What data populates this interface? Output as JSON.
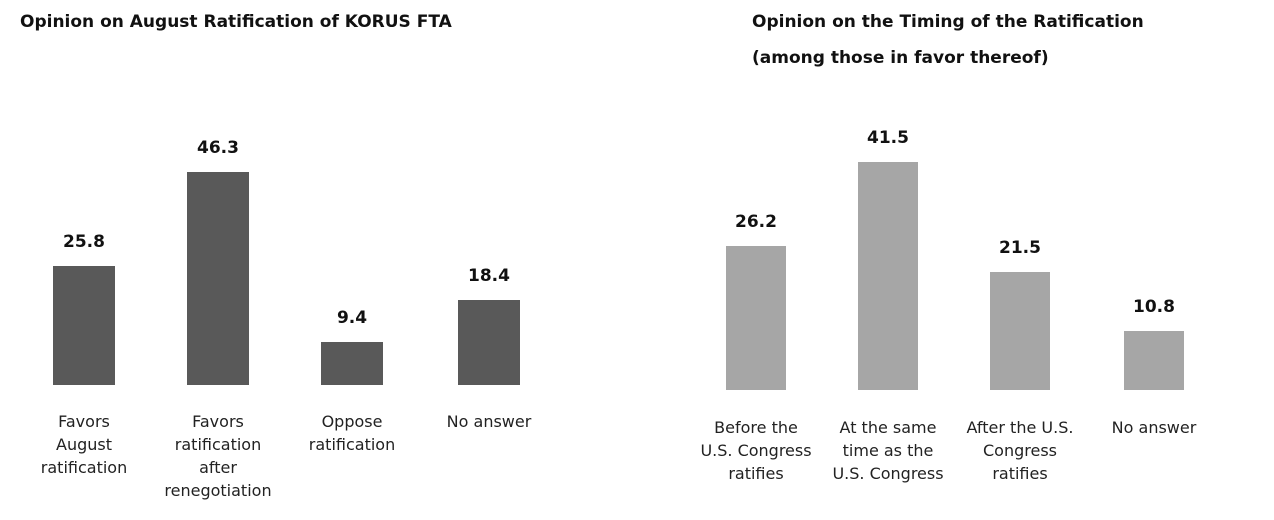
{
  "chart_data": [
    {
      "type": "bar",
      "title": "Opinion on August Ratification of KORUS FTA",
      "categories": [
        "Favors\nAugust\nratification",
        "Favors\nratification\nafter\nrenegotiation",
        "Oppose\nratification",
        "No answer"
      ],
      "values": [
        25.8,
        46.3,
        9.4,
        18.4
      ],
      "color": "#595959"
    },
    {
      "type": "bar",
      "title": "Opinion on the Timing of the Ratification\n(among those in favor thereof)",
      "categories": [
        "Before the\nU.S. Congress\nratifies",
        "At the same\ntime as the\nU.S. Congress",
        "After the U.S.\nCongress\nratifies",
        "No answer"
      ],
      "values": [
        26.2,
        41.5,
        21.5,
        10.8
      ],
      "color": "#a6a6a6"
    }
  ]
}
